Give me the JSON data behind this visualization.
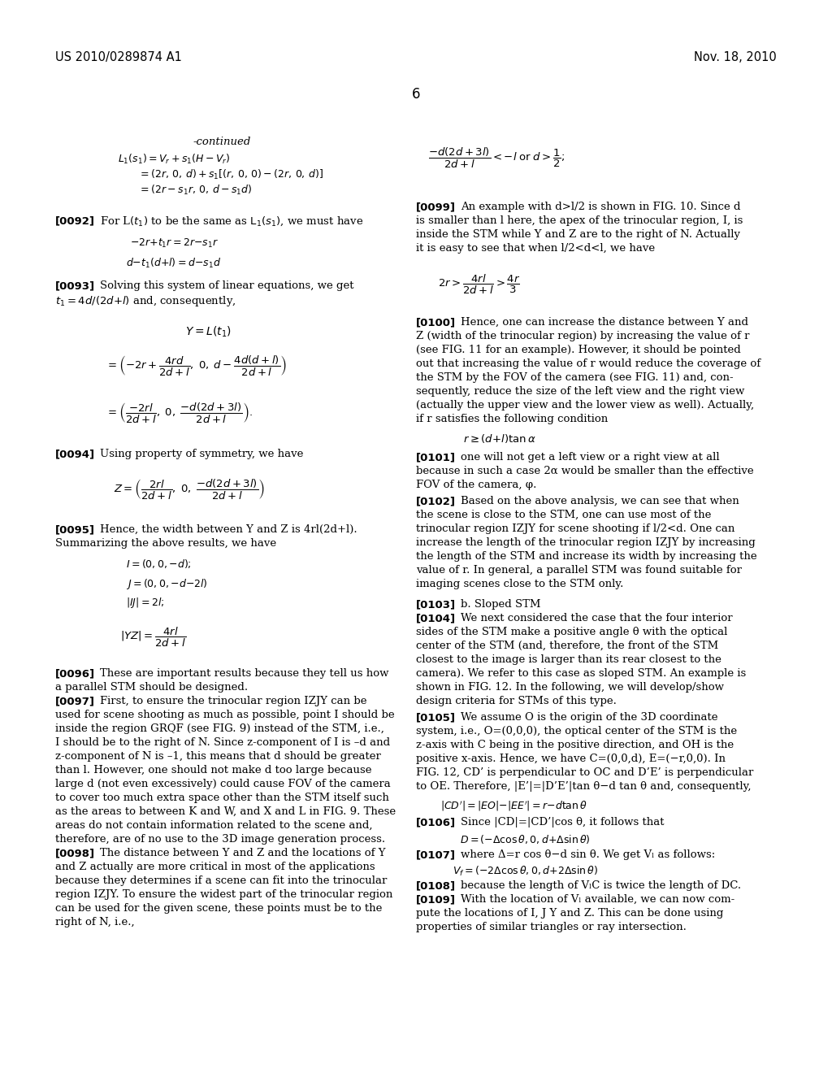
{
  "background_color": "#ffffff",
  "header_left": "US 2010/0289874 A1",
  "header_right": "Nov. 18, 2010",
  "page_number": "6"
}
